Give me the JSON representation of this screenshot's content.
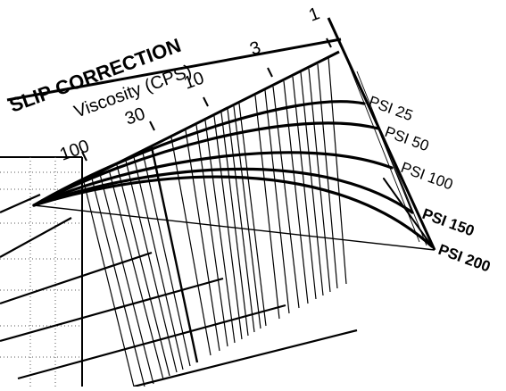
{
  "diagram": {
    "title": "SLIP CORRECTION",
    "axis_label": "Viscosity (CPS)",
    "viscosity_ticks": [
      "100",
      "30",
      "10",
      "3",
      "1"
    ],
    "pressure_curves": [
      {
        "label": "PSI 25"
      },
      {
        "label": "PSI 50"
      },
      {
        "label": "PSI 100"
      },
      {
        "label": "PSI 150"
      },
      {
        "label": "PSI 200"
      }
    ],
    "colors": {
      "ink": "#000000",
      "grid_dots": "#555555",
      "background": "#ffffff"
    }
  }
}
